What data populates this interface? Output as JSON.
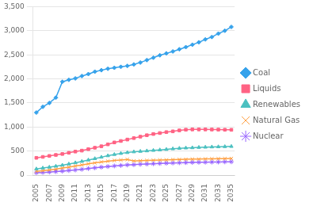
{
  "chart_data": {
    "type": "line",
    "x": [
      2005,
      2006,
      2007,
      2008,
      2009,
      2010,
      2011,
      2012,
      2013,
      2014,
      2015,
      2016,
      2017,
      2018,
      2019,
      2020,
      2021,
      2022,
      2023,
      2024,
      2025,
      2026,
      2027,
      2028,
      2029,
      2030,
      2031,
      2032,
      2033,
      2034,
      2035
    ],
    "series": [
      {
        "name": "Coal",
        "marker": "diamond",
        "values": [
          1300,
          1420,
          1500,
          1610,
          1940,
          1980,
          2010,
          2060,
          2100,
          2150,
          2180,
          2210,
          2230,
          2250,
          2270,
          2300,
          2340,
          2390,
          2440,
          2490,
          2530,
          2570,
          2615,
          2660,
          2710,
          2760,
          2820,
          2870,
          2940,
          3000,
          3080
        ]
      },
      {
        "name": "Liquids",
        "marker": "square",
        "values": [
          360,
          380,
          400,
          420,
          440,
          465,
          490,
          510,
          540,
          570,
          600,
          640,
          680,
          710,
          740,
          770,
          800,
          830,
          855,
          875,
          895,
          910,
          930,
          945,
          950,
          950,
          950,
          948,
          946,
          944,
          942
        ]
      },
      {
        "name": "Renewables",
        "marker": "triangle",
        "values": [
          130,
          148,
          166,
          186,
          208,
          232,
          258,
          286,
          315,
          344,
          374,
          404,
          430,
          452,
          470,
          485,
          495,
          505,
          515,
          525,
          535,
          548,
          558,
          565,
          570,
          577,
          582,
          587,
          590,
          593,
          597
        ]
      },
      {
        "name": "Natural Gas",
        "marker": "x",
        "values": [
          80,
          92,
          108,
          125,
          148,
          168,
          190,
          212,
          235,
          255,
          275,
          290,
          305,
          315,
          325,
          295,
          300,
          305,
          310,
          315,
          318,
          322,
          325,
          330,
          333,
          336,
          338,
          340,
          342,
          344,
          346
        ]
      },
      {
        "name": "Nuclear",
        "marker": "star",
        "values": [
          50,
          57,
          65,
          74,
          84,
          96,
          108,
          122,
          138,
          152,
          168,
          180,
          192,
          202,
          212,
          218,
          226,
          232,
          238,
          244,
          250,
          254,
          258,
          262,
          265,
          268,
          270,
          272,
          274,
          276,
          278
        ]
      }
    ],
    "xlim": [
      2004.5,
      2035.5
    ],
    "xticks": [
      2005,
      2007,
      2009,
      2011,
      2013,
      2015,
      2017,
      2019,
      2021,
      2023,
      2025,
      2027,
      2029,
      2031,
      2033,
      2035
    ],
    "ylim": [
      0,
      3500
    ],
    "yticks": [
      0,
      500,
      {
        "value": 1000,
        "label": "1,000"
      },
      {
        "value": 1500,
        "label": "1,500"
      },
      {
        "value": 2000,
        "label": "2,000"
      },
      {
        "value": 2500,
        "label": "2,500"
      },
      {
        "value": 3000,
        "label": "3,000"
      },
      {
        "value": 3500,
        "label": "3,500"
      }
    ],
    "grid": "y",
    "legend": "right"
  }
}
